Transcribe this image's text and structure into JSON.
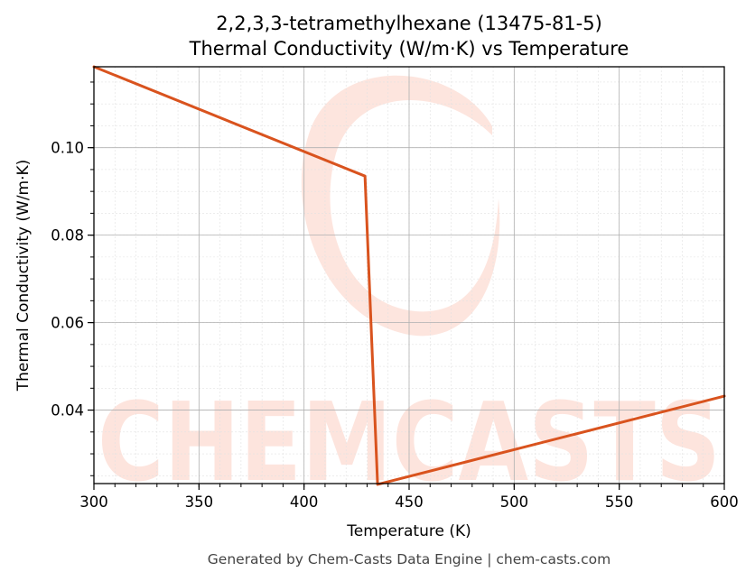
{
  "chart_data": {
    "type": "line",
    "title": "2,2,3,3-tetramethylhexane (13475-81-5)",
    "subtitle": "Thermal Conductivity (W/m·K) vs Temperature",
    "xlabel": "Temperature (K)",
    "ylabel": "Thermal Conductivity (W/m·K)",
    "xlim": [
      300,
      600
    ],
    "ylim": [
      0.0232,
      0.1185
    ],
    "xticks": [
      300,
      350,
      400,
      450,
      500,
      550,
      600
    ],
    "yticks": [
      0.04,
      0.06,
      0.08,
      0.1
    ],
    "grid": true,
    "series": [
      {
        "color": "#d9531e",
        "x": [
          300,
          429,
          435,
          600
        ],
        "y": [
          0.1185,
          0.0935,
          0.023,
          0.0432
        ]
      }
    ]
  },
  "watermark": {
    "text": "CHEMCASTS",
    "color": "#fde0d8"
  },
  "footer": "Generated by Chem-Casts Data Engine | chem-casts.com"
}
